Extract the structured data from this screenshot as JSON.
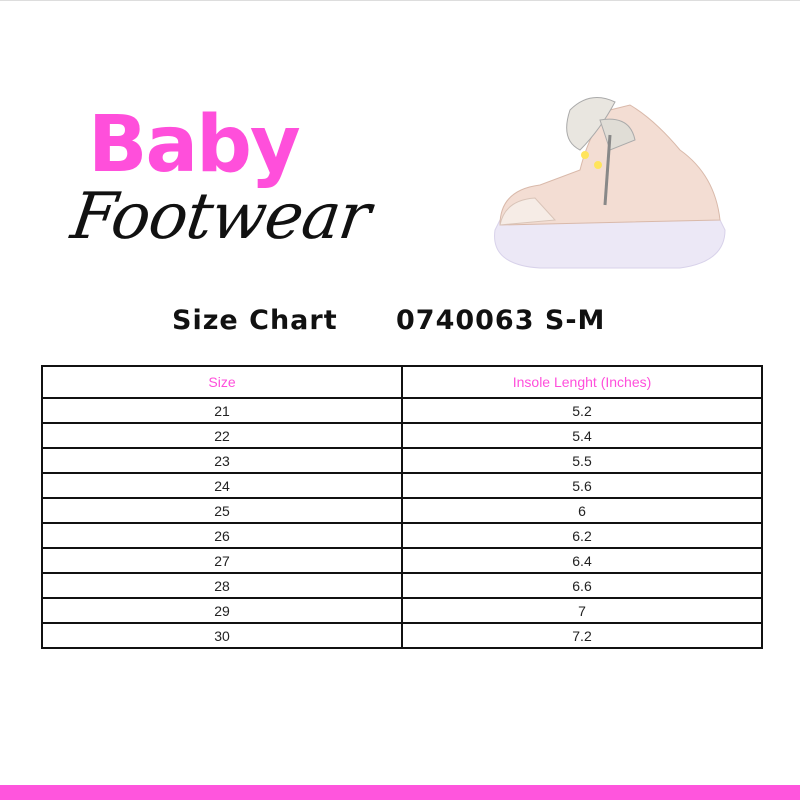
{
  "brand": {
    "line1": "Baby",
    "line2": "Footwear"
  },
  "title": {
    "label": "Size Chart",
    "code": "0740063 S-M"
  },
  "table": {
    "headers": [
      "Size",
      "Insole Lenght (Inches)"
    ],
    "rows": [
      [
        "21",
        "5.2"
      ],
      [
        "22",
        "5.4"
      ],
      [
        "23",
        "5.5"
      ],
      [
        "24",
        "5.6"
      ],
      [
        "25",
        "6"
      ],
      [
        "26",
        "6.2"
      ],
      [
        "27",
        "6.4"
      ],
      [
        "28",
        "6.6"
      ],
      [
        "29",
        "7"
      ],
      [
        "30",
        "7.2"
      ]
    ]
  },
  "colors": {
    "accent": "#ff4fdb",
    "bottom_bar": "#ff55dd"
  }
}
